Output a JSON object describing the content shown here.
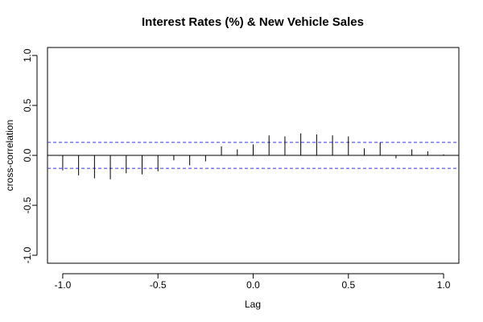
{
  "chart_data": {
    "type": "bar",
    "title": "Interest Rates (%) & New Vehicle Sales",
    "xlabel": "Lag",
    "ylabel": "cross-correlation",
    "xlim": [
      -1.08,
      1.08
    ],
    "ylim": [
      -1.08,
      1.08
    ],
    "x_ticks": [
      -1.0,
      -0.5,
      0.0,
      0.5,
      1.0
    ],
    "x_tick_labels": [
      "-1.0",
      "-0.5",
      "0.0",
      "0.5",
      "1.0"
    ],
    "y_ticks": [
      -1.0,
      -0.5,
      0.0,
      0.5,
      1.0
    ],
    "y_tick_labels": [
      "-1.0",
      "-0.5",
      "0.0",
      "0.5",
      "1.0"
    ],
    "confidence_bounds": [
      -0.13,
      0.13
    ],
    "colors": {
      "bars": "#000000",
      "bounds": "#3333ff",
      "zero_line": "#000000"
    },
    "lags": [
      -1.0,
      -0.9167,
      -0.8333,
      -0.75,
      -0.6667,
      -0.5833,
      -0.5,
      -0.4167,
      -0.3333,
      -0.25,
      -0.1667,
      -0.0833,
      0.0,
      0.0833,
      0.1667,
      0.25,
      0.3333,
      0.4167,
      0.5,
      0.5833,
      0.6667,
      0.75,
      0.8333,
      0.9167,
      1.0
    ],
    "values": [
      -0.15,
      -0.2,
      -0.23,
      -0.24,
      -0.18,
      -0.19,
      -0.16,
      -0.05,
      -0.1,
      -0.06,
      0.09,
      0.06,
      0.11,
      0.2,
      0.19,
      0.22,
      0.21,
      0.2,
      0.19,
      0.07,
      0.13,
      -0.03,
      0.06,
      0.04,
      0.01
    ]
  }
}
